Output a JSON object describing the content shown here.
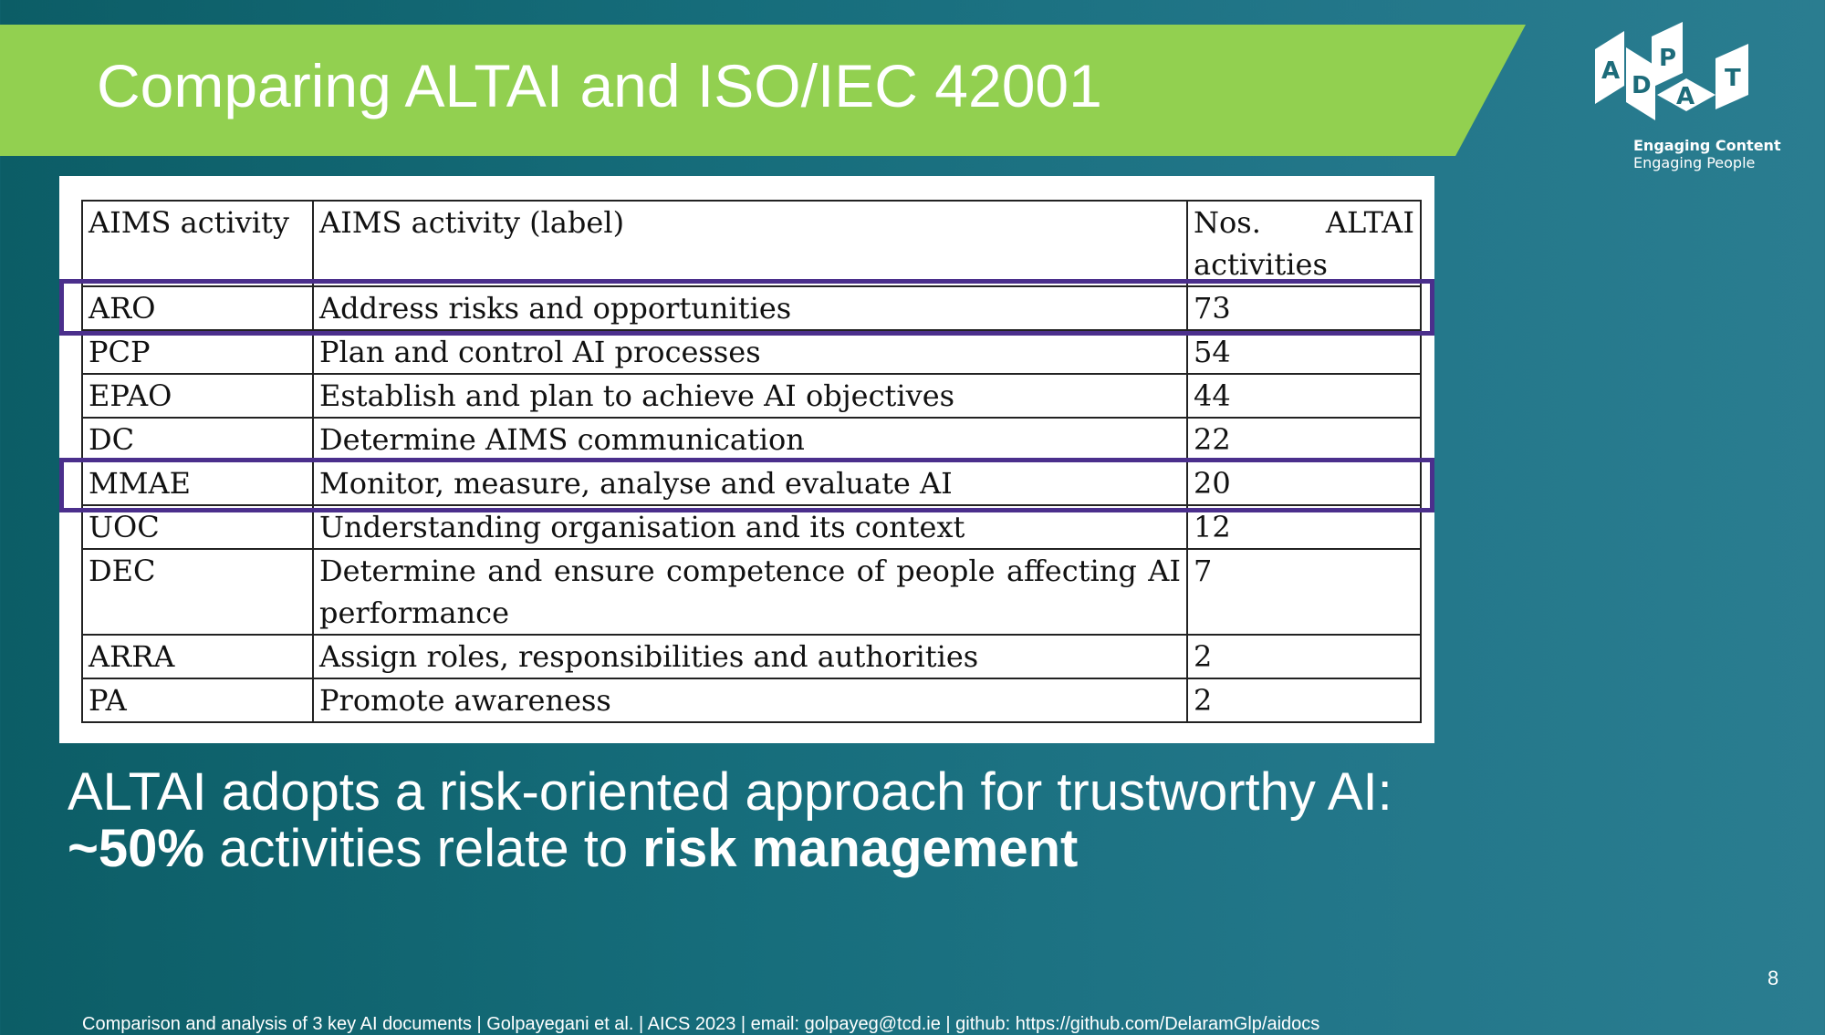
{
  "slide": {
    "title": "Comparing ALTAI and ISO/IEC 42001",
    "page_number": "8"
  },
  "logo": {
    "letters": [
      "A",
      "D",
      "A",
      "P",
      "T"
    ],
    "tagline_line1": "Engaging Content",
    "tagline_line2": "Engaging People"
  },
  "table": {
    "headers": [
      "AIMS activity",
      "AIMS activity (label)",
      "Nos. ALTAI activities"
    ],
    "rows": [
      {
        "code": "ARO",
        "label": "Address risks and opportunities",
        "count": "73",
        "highlighted": true
      },
      {
        "code": "PCP",
        "label": "Plan and control AI processes",
        "count": "54",
        "highlighted": false
      },
      {
        "code": "EPAO",
        "label": "Establish and plan to achieve AI objectives",
        "count": "44",
        "highlighted": false
      },
      {
        "code": "DC",
        "label": "Determine AIMS communication",
        "count": "22",
        "highlighted": false
      },
      {
        "code": "MMAE",
        "label": "Monitor, measure, analyse and evaluate AI",
        "count": "20",
        "highlighted": true
      },
      {
        "code": "UOC",
        "label": "Understanding organisation and its context",
        "count": "12",
        "highlighted": false
      },
      {
        "code": "DEC",
        "label": "Determine and ensure competence of people affecting AI performance",
        "count": "7",
        "highlighted": false
      },
      {
        "code": "ARRA",
        "label": "Assign roles, responsibilities and authorities",
        "count": "2",
        "highlighted": false
      },
      {
        "code": "PA",
        "label": "Promote awareness",
        "count": "2",
        "highlighted": false
      }
    ]
  },
  "summary": {
    "line1": "ALTAI adopts a risk-oriented approach for trustworthy AI:",
    "line2_bold_start": "~50%",
    "line2_middle": " activities relate to ",
    "line2_bold_end": "risk management"
  },
  "footer": {
    "text": "Comparison and analysis of 3 key AI documents | Golpayegani et al. | AICS 2023 | email: golpayeg@tcd.ie | github: https://github.com/DelaramGlp/aidocs"
  },
  "colors": {
    "banner": "#92d050",
    "highlight_border": "#4b2f8c",
    "text_on_dark": "#ffffff"
  }
}
